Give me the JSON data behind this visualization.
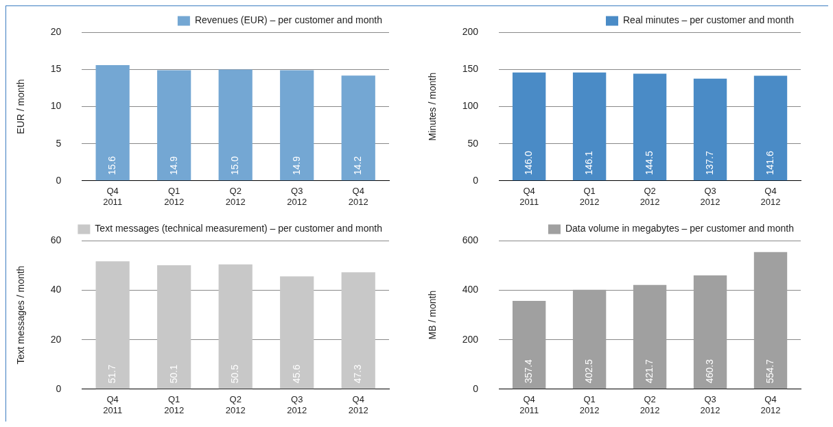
{
  "chart_data": [
    {
      "type": "bar",
      "categories": [
        "Q4 2011",
        "Q1 2012",
        "Q2 2012",
        "Q3 2012",
        "Q4 2012"
      ],
      "ylabel": "EUR / month",
      "ylim": [
        0,
        20
      ],
      "yticks": [
        0,
        5,
        10,
        15,
        20
      ],
      "grid": "y",
      "legend": "top right",
      "series": [
        {
          "name": "Revenues (EUR) – per customer and month",
          "color": "#74a7d3",
          "values": [
            15.6,
            14.9,
            15.0,
            14.9,
            14.2
          ],
          "value_labels": [
            "15.6",
            "14.9",
            "15.0",
            "14.9",
            "14.2"
          ]
        }
      ]
    },
    {
      "type": "bar",
      "categories": [
        "Q4 2011",
        "Q1 2012",
        "Q2 2012",
        "Q3 2012",
        "Q4 2012"
      ],
      "ylabel": "Minutes / month",
      "ylim": [
        0,
        200
      ],
      "yticks": [
        0,
        50,
        100,
        150,
        200
      ],
      "grid": "y",
      "legend": "top right",
      "series": [
        {
          "name": "Real minutes – per customer and month",
          "color": "#4a8bc6",
          "values": [
            146.0,
            146.1,
            144.5,
            137.7,
            141.6
          ],
          "value_labels": [
            "146.0",
            "146.1",
            "144.5",
            "137.7",
            "141.6"
          ]
        }
      ]
    },
    {
      "type": "bar",
      "categories": [
        "Q4 2011",
        "Q1 2012",
        "Q2 2012",
        "Q3 2012",
        "Q4 2012"
      ],
      "ylabel": "Text messages / month",
      "ylim": [
        0,
        60
      ],
      "yticks": [
        0,
        20,
        40,
        60
      ],
      "grid": "y",
      "legend": "top right",
      "series": [
        {
          "name": "Text messages (technical measurement) – per customer and month",
          "color": "#c8c8c8",
          "values": [
            51.7,
            50.1,
            50.5,
            45.6,
            47.3
          ],
          "value_labels": [
            "51.7",
            "50.1",
            "50.5",
            "45.6",
            "47.3"
          ]
        }
      ]
    },
    {
      "type": "bar",
      "categories": [
        "Q4 2011",
        "Q1 2012",
        "Q2 2012",
        "Q3 2012",
        "Q4 2012"
      ],
      "ylabel": "MB / month",
      "ylim": [
        0,
        600
      ],
      "yticks": [
        0,
        200,
        400,
        600
      ],
      "grid": "y",
      "legend": "top right",
      "series": [
        {
          "name": "Data volume in megabytes – per customer and month",
          "color": "#a0a0a0",
          "values": [
            357.4,
            402.5,
            421.7,
            460.3,
            554.7
          ],
          "value_labels": [
            "357.4",
            "402.5",
            "421.7",
            "460.3",
            "554.7"
          ]
        }
      ]
    }
  ]
}
